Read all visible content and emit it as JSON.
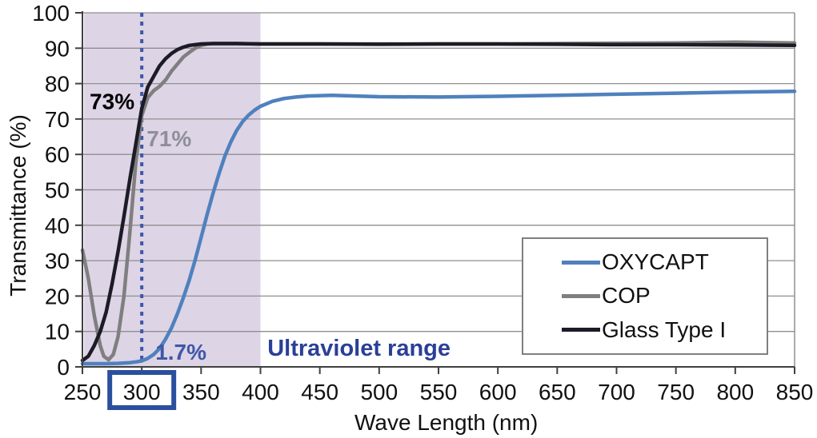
{
  "chart_data": {
    "type": "line",
    "title": "",
    "xlabel": "Wave Length (nm)",
    "ylabel": "Transmittance (%)",
    "xlim": [
      250,
      850
    ],
    "ylim": [
      0,
      100
    ],
    "x_ticks": [
      250,
      300,
      350,
      400,
      450,
      500,
      550,
      600,
      650,
      700,
      750,
      800,
      850
    ],
    "y_ticks": [
      0,
      10,
      20,
      30,
      40,
      50,
      60,
      70,
      80,
      90,
      100
    ],
    "highlighted_x_tick": 300,
    "grid": "horizontal",
    "plot_border_right": true,
    "uv_band": {
      "x_start": 250,
      "x_end": 400,
      "color": "#ddd4e6",
      "label": "Ultraviolet range",
      "label_color": "#2a3f97",
      "label_x": 483,
      "label_y": 3.2
    },
    "reference_line": {
      "x": 300,
      "color": "#3f57a7",
      "style": "dotted",
      "y_top": 100,
      "y_bottom": 1.5
    },
    "highlight_box_color": "#2b4f9e",
    "series": [
      {
        "name": "OXYCAPT",
        "color": "#4f81bd",
        "x": [
          250,
          260,
          270,
          280,
          290,
          295,
          300,
          305,
          310,
          315,
          320,
          325,
          330,
          335,
          340,
          345,
          350,
          355,
          360,
          365,
          370,
          375,
          380,
          385,
          390,
          395,
          400,
          410,
          420,
          430,
          440,
          460,
          480,
          500,
          550,
          600,
          650,
          700,
          750,
          800,
          850
        ],
        "values": [
          0.9,
          0.9,
          0.9,
          1.0,
          1.2,
          1.4,
          1.7,
          2.4,
          3.5,
          5.2,
          7.8,
          11.0,
          15.0,
          19.5,
          24.5,
          30.2,
          36.5,
          43.0,
          49.0,
          54.5,
          59.5,
          63.5,
          66.8,
          69.3,
          71.1,
          72.5,
          73.6,
          75.0,
          75.8,
          76.2,
          76.5,
          76.7,
          76.5,
          76.3,
          76.2,
          76.4,
          76.7,
          77.0,
          77.3,
          77.6,
          77.8
        ]
      },
      {
        "name": "COP",
        "color": "#7f7f7f",
        "x": [
          250,
          255,
          260,
          265,
          268,
          272,
          276,
          280,
          285,
          290,
          295,
          300,
          305,
          310,
          315,
          320,
          325,
          330,
          335,
          340,
          345,
          350,
          355,
          360,
          380,
          400,
          450,
          500,
          550,
          600,
          650,
          700,
          750,
          800,
          850
        ],
        "values": [
          33.0,
          25.0,
          14.5,
          6.0,
          3.0,
          2.0,
          3.5,
          8.5,
          20.0,
          38.0,
          58.0,
          71.0,
          76.0,
          78.0,
          79.2,
          81.0,
          83.5,
          85.5,
          87.5,
          88.8,
          90.0,
          90.8,
          91.2,
          91.3,
          91.3,
          91.2,
          91.2,
          91.2,
          91.2,
          91.2,
          91.3,
          91.4,
          91.5,
          91.7,
          91.5
        ]
      },
      {
        "name": "Glass Type I",
        "color": "#1c1b26",
        "x": [
          250,
          255,
          260,
          265,
          270,
          275,
          280,
          285,
          290,
          295,
          300,
          305,
          310,
          315,
          320,
          325,
          330,
          335,
          340,
          345,
          350,
          360,
          380,
          400,
          450,
          500,
          550,
          600,
          650,
          700,
          750,
          800,
          850
        ],
        "values": [
          1.8,
          3.0,
          6.0,
          10.0,
          15.5,
          23.5,
          32.5,
          42.5,
          53.0,
          63.0,
          73.0,
          79.0,
          82.0,
          85.0,
          87.0,
          88.5,
          89.6,
          90.3,
          90.8,
          91.0,
          91.2,
          91.3,
          91.3,
          91.2,
          91.2,
          91.1,
          91.2,
          91.2,
          91.1,
          91.0,
          91.0,
          90.9,
          90.8
        ]
      }
    ],
    "annotations": [
      {
        "text": "73%",
        "x": 275,
        "y": 72.8,
        "color": "#000000",
        "bold": true
      },
      {
        "text": "71%",
        "x": 323,
        "y": 62.3,
        "color": "#8f8f99",
        "bold": true
      },
      {
        "text": "1.7%",
        "x": 333,
        "y": 2.0,
        "color": "#3f57a7",
        "bold": true
      }
    ],
    "legend": {
      "position": "right-center",
      "entries": [
        "OXYCAPT",
        "COP",
        "Glass Type I"
      ]
    },
    "colors": {
      "gridline": "#8f8f8f",
      "axis": "#404040",
      "background": "#ffffff"
    }
  }
}
